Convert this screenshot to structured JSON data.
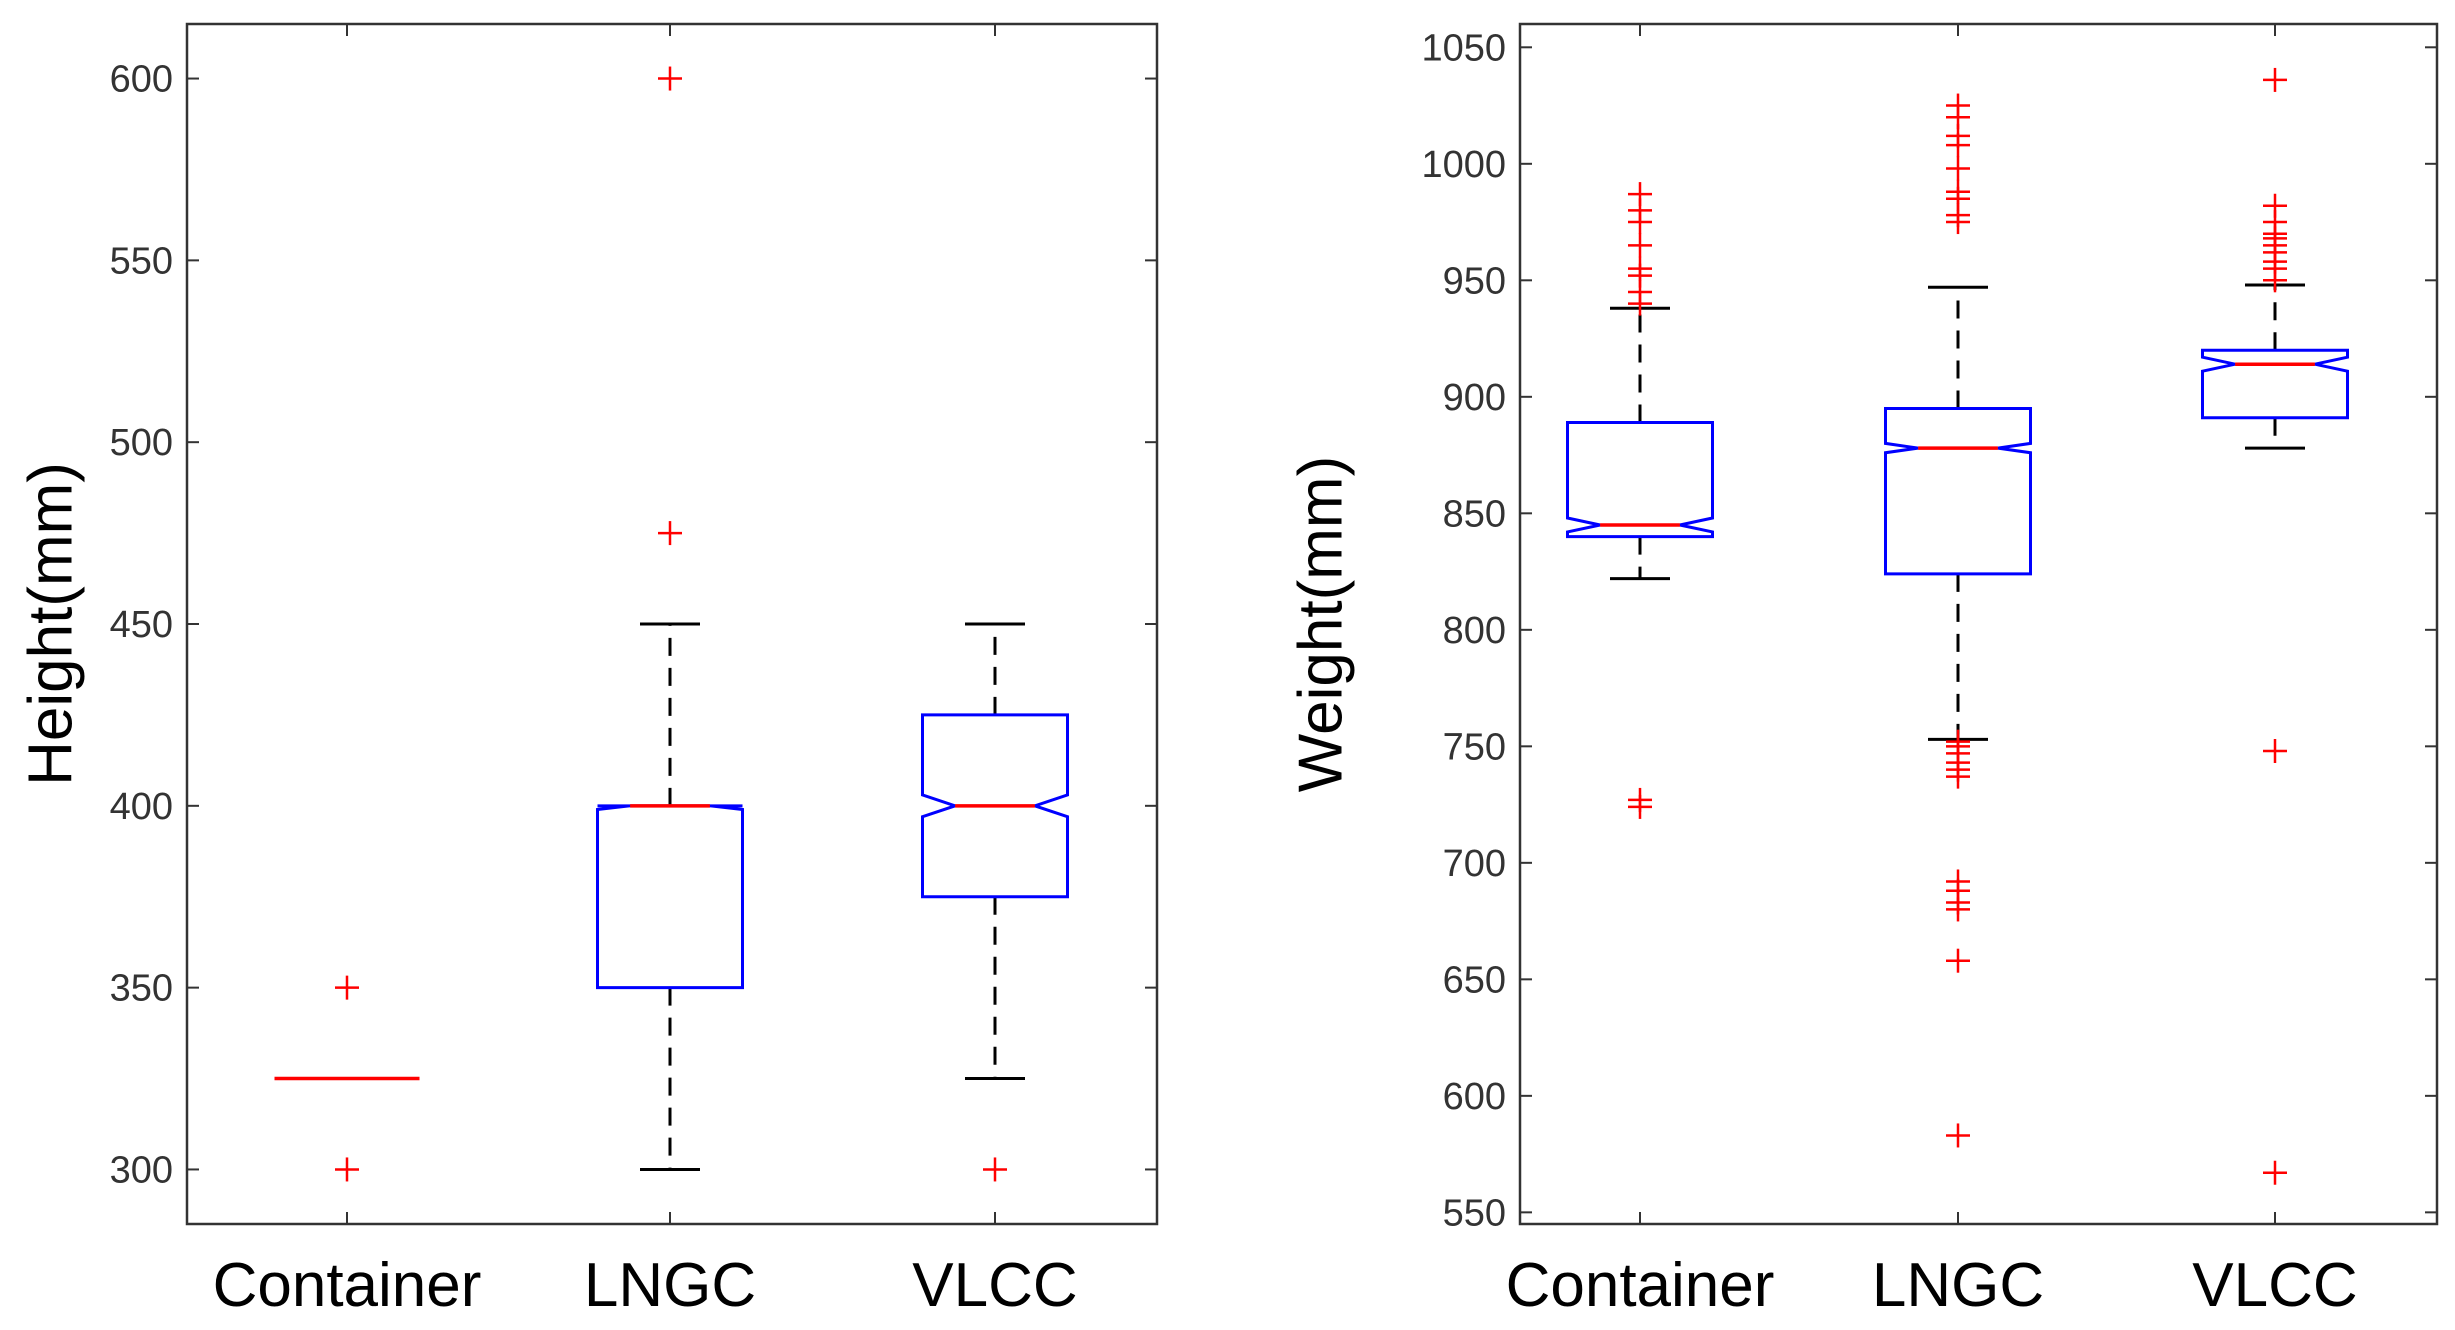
{
  "colors": {
    "box": "#0000ff",
    "median": "#ff0000",
    "outlier": "#ff0000",
    "whisker": "#000000",
    "axis": "#333333",
    "tick_text": "#333333"
  },
  "chart_data": [
    {
      "type": "boxplot",
      "notched": true,
      "xlabel": "",
      "ylabel": "Height(mm)",
      "ylim": [
        285,
        615
      ],
      "yticks": [
        300,
        350,
        400,
        450,
        500,
        550,
        600
      ],
      "categories": [
        "Container",
        "LNGC",
        "VLCC"
      ],
      "boxes": [
        {
          "category": "Container",
          "q1": 325,
          "median": 325,
          "q3": 325,
          "notch_low": 325,
          "notch_high": 325,
          "whisker_low": 325,
          "whisker_high": 325,
          "outliers": [
            350,
            300
          ]
        },
        {
          "category": "LNGC",
          "q1": 350,
          "median": 400,
          "q3": 400,
          "notch_low": 399,
          "notch_high": 401,
          "whisker_low": 300,
          "whisker_high": 450,
          "outliers": [
            600,
            475
          ]
        },
        {
          "category": "VLCC",
          "q1": 375,
          "median": 400,
          "q3": 425,
          "notch_low": 397,
          "notch_high": 403,
          "whisker_low": 325,
          "whisker_high": 450,
          "outliers": [
            300
          ]
        }
      ]
    },
    {
      "type": "boxplot",
      "notched": true,
      "xlabel": "",
      "ylabel": "Weight(mm)",
      "ylim": [
        545,
        1060
      ],
      "yticks": [
        550,
        600,
        650,
        700,
        750,
        800,
        850,
        900,
        950,
        1000,
        1050
      ],
      "categories": [
        "Container",
        "LNGC",
        "VLCC"
      ],
      "boxes": [
        {
          "category": "Container",
          "q1": 840,
          "median": 845,
          "q3": 889,
          "notch_low": 842,
          "notch_high": 848,
          "whisker_low": 822,
          "whisker_high": 938,
          "outliers": [
            987,
            980,
            975,
            965,
            955,
            952,
            945,
            940,
            727,
            724
          ]
        },
        {
          "category": "LNGC",
          "q1": 824,
          "median": 878,
          "q3": 895,
          "notch_low": 876,
          "notch_high": 880,
          "whisker_low": 753,
          "whisker_high": 947,
          "outliers": [
            1025,
            1020,
            1012,
            1008,
            998,
            988,
            985,
            978,
            975,
            752,
            750,
            747,
            743,
            740,
            737,
            692,
            688,
            683,
            680,
            658,
            583
          ]
        },
        {
          "category": "VLCC",
          "q1": 891,
          "median": 914,
          "q3": 920,
          "notch_low": 911,
          "notch_high": 917,
          "whisker_low": 878,
          "whisker_high": 948,
          "outliers": [
            1036,
            982,
            975,
            970,
            968,
            965,
            962,
            958,
            955,
            950,
            748,
            567
          ]
        }
      ]
    }
  ]
}
